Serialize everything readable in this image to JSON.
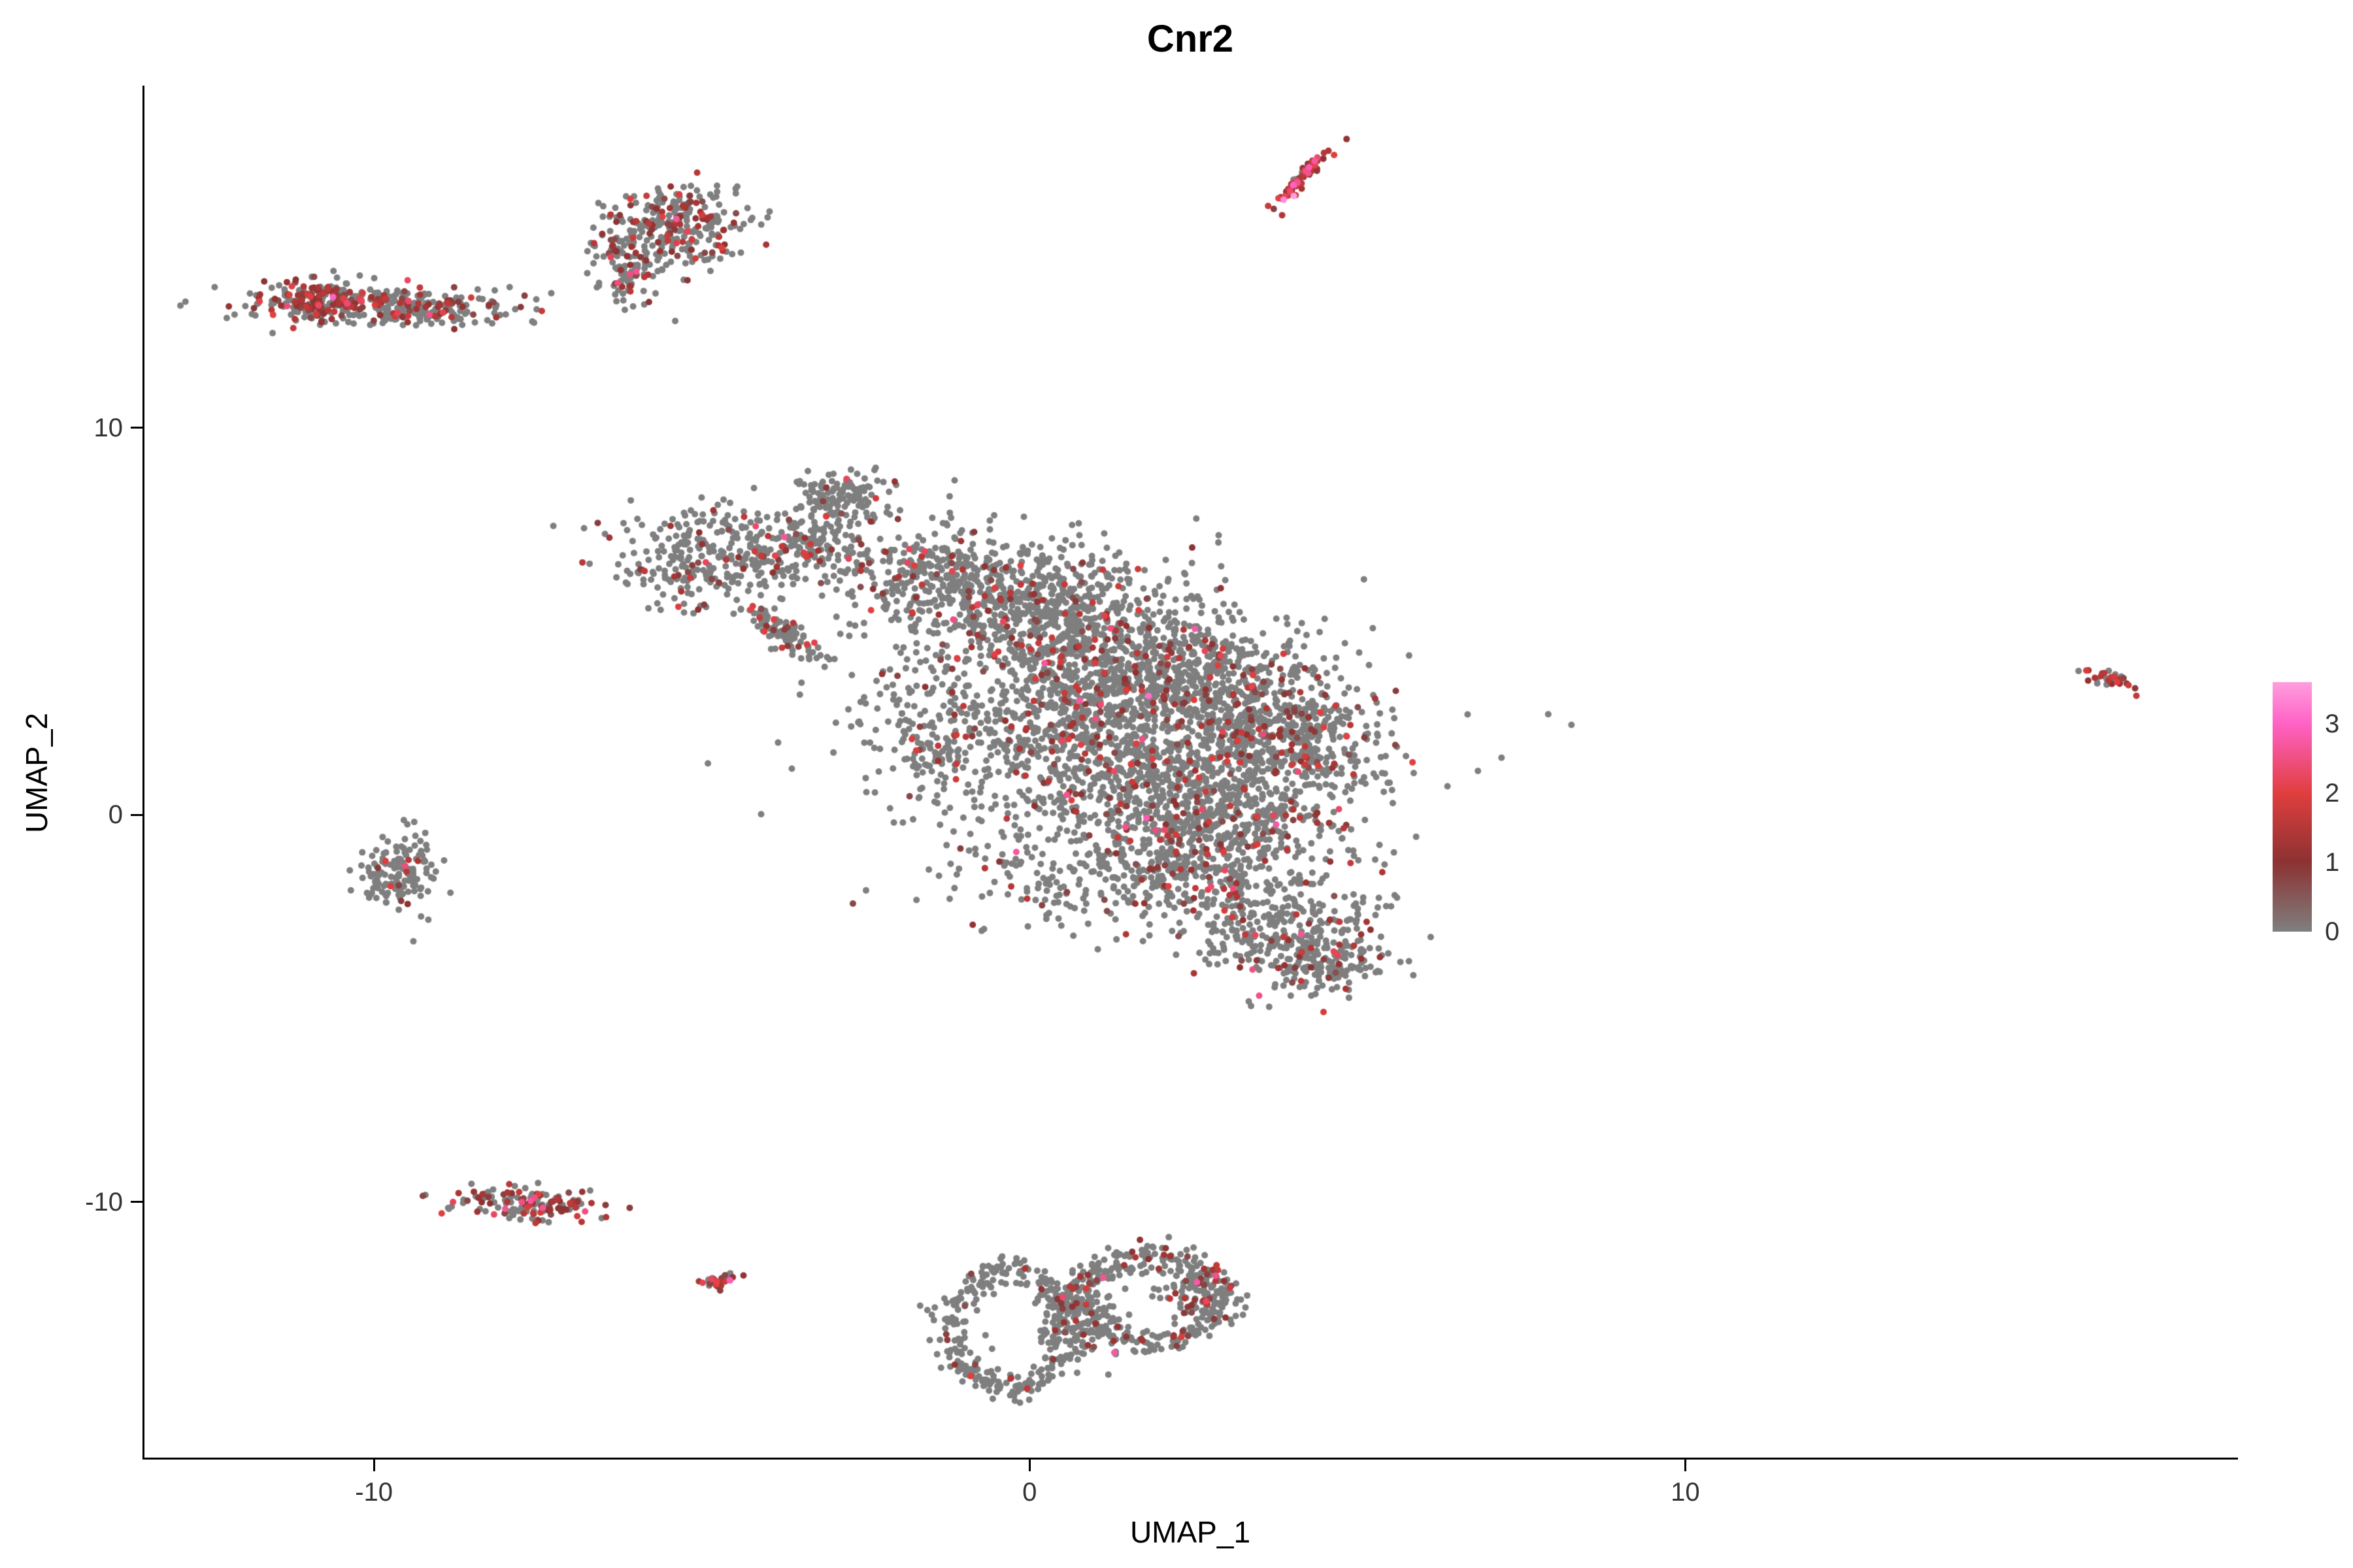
{
  "chart_data": {
    "type": "scatter",
    "title": "Cnr2",
    "xlabel": "UMAP_1",
    "ylabel": "UMAP_2",
    "x_ticks": [
      -10,
      0,
      10
    ],
    "y_ticks": [
      10,
      0,
      -10
    ],
    "x_range": [
      -13.5,
      18.4
    ],
    "y_range": [
      -16.6,
      18.8
    ],
    "grid": false,
    "background": "#FFFFFF",
    "point_color_zero": "#7F7F7F",
    "point_radius_px": 5,
    "seed": 12345,
    "legend": {
      "position": "right",
      "ticks": [
        3,
        2,
        1,
        0
      ],
      "range": [
        0,
        3.6
      ],
      "gradient_stops": [
        {
          "value": 0,
          "color": "#7F7F7F"
        },
        {
          "value": 1,
          "color": "#8C3232"
        },
        {
          "value": 2,
          "color": "#E03E3E"
        },
        {
          "value": 3,
          "color": "#FF62C6"
        },
        {
          "value": 3.6,
          "color": "#FF9EDE"
        }
      ]
    },
    "clusters": [
      {
        "name": "topleft-bar-left",
        "shape": "gauss",
        "cx": -10.8,
        "cy": 13.25,
        "sx": 0.5,
        "sy": 0.25,
        "angle": 0,
        "n": 220,
        "expr_frac": 0.5
      },
      {
        "name": "topleft-bar-right",
        "shape": "gauss",
        "cx": -9.4,
        "cy": 13.1,
        "sx": 0.75,
        "sy": 0.22,
        "angle": -3,
        "n": 200,
        "expr_frac": 0.25
      },
      {
        "name": "topleft-bar-halo",
        "shape": "gauss",
        "cx": -10.0,
        "cy": 13.2,
        "sx": 1.2,
        "sy": 0.32,
        "angle": 0,
        "n": 70,
        "expr_frac": 0.2
      },
      {
        "name": "upper-blob-main",
        "shape": "gauss",
        "cx": -5.4,
        "cy": 15.2,
        "sx": 0.55,
        "sy": 0.55,
        "angle": 0,
        "n": 280,
        "expr_frac": 0.28
      },
      {
        "name": "upper-blob-tail",
        "shape": "gauss",
        "cx": -6.1,
        "cy": 14.1,
        "sx": 0.3,
        "sy": 0.5,
        "angle": 0,
        "n": 90,
        "expr_frac": 0.2
      },
      {
        "name": "top-streak",
        "shape": "gauss",
        "cx": 4.15,
        "cy": 16.45,
        "sx": 0.4,
        "sy": 0.07,
        "angle": 60,
        "n": 75,
        "expr_frac": 0.9,
        "expr_mean": 1.4
      },
      {
        "name": "left-arm",
        "shape": "gauss",
        "cx": -4.7,
        "cy": 6.7,
        "sx": 0.75,
        "sy": 0.7,
        "angle": 0,
        "n": 320,
        "expr_frac": 0.12
      },
      {
        "name": "left-arm-neck",
        "shape": "gauss",
        "cx": -3.3,
        "cy": 7.0,
        "sx": 0.4,
        "sy": 0.4,
        "angle": 0,
        "n": 120,
        "expr_frac": 0.12
      },
      {
        "name": "left-arm-streak",
        "shape": "gauss",
        "cx": -3.7,
        "cy": 4.7,
        "sx": 0.45,
        "sy": 0.14,
        "angle": -50,
        "n": 90,
        "expr_frac": 0.2
      },
      {
        "name": "core-tip",
        "shape": "gauss",
        "cx": -2.85,
        "cy": 8.2,
        "sx": 0.35,
        "sy": 0.4,
        "angle": 0,
        "n": 130,
        "expr_frac": 0.12
      },
      {
        "name": "core-a",
        "shape": "gauss",
        "cx": -1.3,
        "cy": 6.1,
        "sx": 0.8,
        "sy": 0.7,
        "angle": 0,
        "n": 350,
        "expr_frac": 0.12
      },
      {
        "name": "core-b",
        "shape": "gauss",
        "cx": 0.1,
        "cy": 5.3,
        "sx": 0.9,
        "sy": 0.8,
        "angle": 0,
        "n": 450,
        "expr_frac": 0.12
      },
      {
        "name": "core-c",
        "shape": "gauss",
        "cx": 1.5,
        "cy": 4.1,
        "sx": 1.0,
        "sy": 0.9,
        "angle": 0,
        "n": 550,
        "expr_frac": 0.12
      },
      {
        "name": "core-d",
        "shape": "gauss",
        "cx": 2.9,
        "cy": 3.0,
        "sx": 1.0,
        "sy": 0.8,
        "angle": 0,
        "n": 500,
        "expr_frac": 0.12
      },
      {
        "name": "core-e",
        "shape": "gauss",
        "cx": 4.0,
        "cy": 1.8,
        "sx": 0.7,
        "sy": 0.7,
        "angle": 0,
        "n": 350,
        "expr_frac": 0.14
      },
      {
        "name": "core-f",
        "shape": "gauss",
        "cx": 0.6,
        "cy": 2.2,
        "sx": 1.0,
        "sy": 0.9,
        "angle": 0,
        "n": 450,
        "expr_frac": 0.12
      },
      {
        "name": "core-g",
        "shape": "gauss",
        "cx": 1.9,
        "cy": 0.6,
        "sx": 1.0,
        "sy": 0.8,
        "angle": 0,
        "n": 450,
        "expr_frac": 0.12
      },
      {
        "name": "core-h",
        "shape": "gauss",
        "cx": 3.3,
        "cy": -0.2,
        "sx": 0.8,
        "sy": 0.7,
        "angle": 0,
        "n": 300,
        "expr_frac": 0.13
      },
      {
        "name": "core-i",
        "shape": "gauss",
        "cx": 1.9,
        "cy": -1.4,
        "sx": 0.8,
        "sy": 0.6,
        "angle": 0,
        "n": 250,
        "expr_frac": 0.12
      },
      {
        "name": "core-j",
        "shape": "gauss",
        "cx": 3.6,
        "cy": -2.6,
        "sx": 0.9,
        "sy": 0.7,
        "angle": 0,
        "n": 300,
        "expr_frac": 0.13
      },
      {
        "name": "core-k",
        "shape": "gauss",
        "cx": 4.3,
        "cy": -3.7,
        "sx": 0.6,
        "sy": 0.5,
        "angle": 0,
        "n": 200,
        "expr_frac": 0.13
      },
      {
        "name": "core-halo",
        "shape": "gauss",
        "cx": 0.9,
        "cy": 2.4,
        "sx": 2.3,
        "sy": 2.0,
        "angle": 0,
        "n": 300,
        "expr_frac": 0.1
      },
      {
        "name": "core-left-edge",
        "shape": "gauss",
        "cx": -1.6,
        "cy": 2.3,
        "sx": 0.5,
        "sy": 1.2,
        "angle": 0,
        "n": 130,
        "expr_frac": 0.1
      },
      {
        "name": "core-below",
        "shape": "gauss",
        "cx": 0.0,
        "cy": -1.6,
        "sx": 0.8,
        "sy": 0.7,
        "angle": 0,
        "n": 100,
        "expr_frac": 0.1
      },
      {
        "name": "left-small",
        "shape": "gauss",
        "cx": -9.63,
        "cy": -1.5,
        "sx": 0.3,
        "sy": 0.5,
        "angle": 0,
        "n": 150,
        "expr_frac": 0.08
      },
      {
        "name": "bottomleft-bar",
        "shape": "gauss",
        "cx": -7.65,
        "cy": -10.05,
        "sx": 0.55,
        "sy": 0.22,
        "angle": -5,
        "n": 160,
        "expr_frac": 0.5
      },
      {
        "name": "tiny-dot",
        "shape": "gauss",
        "cx": -4.75,
        "cy": -12.05,
        "sx": 0.13,
        "sy": 0.1,
        "angle": 0,
        "n": 35,
        "expr_frac": 0.85,
        "expr_mean": 1.3
      },
      {
        "name": "bottom-ring-left",
        "shape": "ring",
        "cx": -0.3,
        "cy": -13.3,
        "rx": 0.9,
        "ry": 1.5,
        "w": 0.2,
        "n": 320,
        "expr_frac": 0.08
      },
      {
        "name": "bottom-ring-right",
        "shape": "ring",
        "cx": 1.8,
        "cy": -12.5,
        "rx": 1.05,
        "ry": 1.1,
        "w": 0.22,
        "n": 340,
        "expr_frac": 0.15
      },
      {
        "name": "bottom-bridge",
        "shape": "gauss",
        "cx": 0.7,
        "cy": -12.9,
        "sx": 0.35,
        "sy": 0.5,
        "angle": 0,
        "n": 90,
        "expr_frac": 0.1
      },
      {
        "name": "bottom-right-tail",
        "shape": "gauss",
        "cx": 2.6,
        "cy": -12.3,
        "sx": 0.35,
        "sy": 0.4,
        "angle": 0,
        "n": 90,
        "expr_frac": 0.25
      },
      {
        "name": "far-right-dot",
        "shape": "gauss",
        "cx": 16.5,
        "cy": 3.45,
        "sx": 0.22,
        "sy": 0.1,
        "angle": -30,
        "n": 32,
        "expr_frac": 0.7,
        "expr_mean": 1.2
      }
    ]
  }
}
